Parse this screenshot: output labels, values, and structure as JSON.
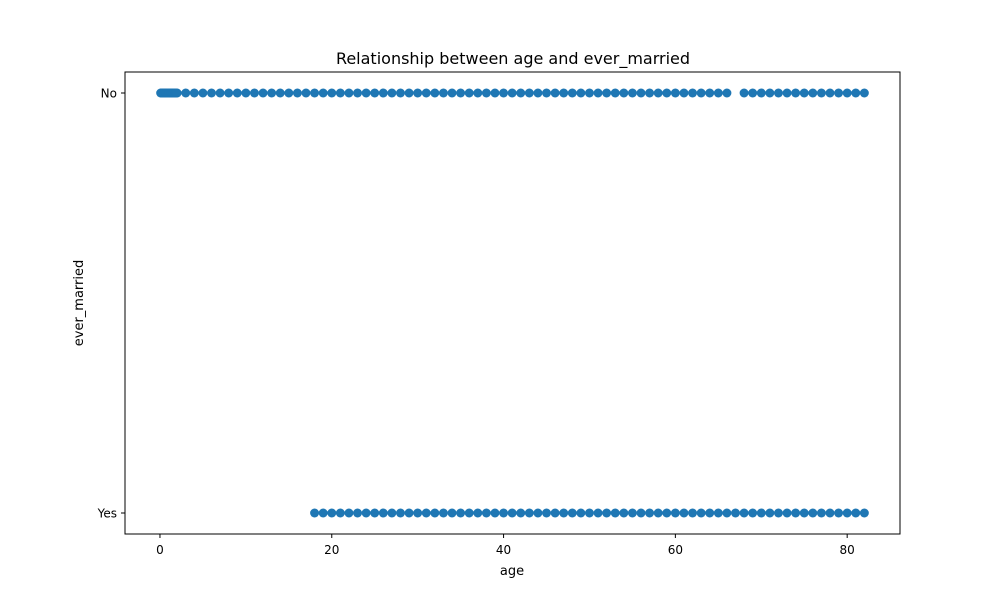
{
  "chart_data": {
    "type": "scatter",
    "title": "Relationship between age and ever_married",
    "xlabel": "age",
    "ylabel": "ever_married",
    "xlim": [
      -4.07,
      86.15
    ],
    "xticks": [
      0,
      20,
      40,
      60,
      80
    ],
    "y_categories": [
      "No",
      "Yes"
    ],
    "grid": false,
    "marker_color": "#1f77b4",
    "series": [
      {
        "category": "No",
        "x": [
          0.08,
          0.16,
          0.24,
          0.32,
          0.4,
          0.48,
          0.56,
          0.64,
          0.72,
          0.8,
          0.88,
          1.0,
          1.08,
          1.16,
          1.24,
          1.32,
          1.4,
          1.48,
          1.56,
          1.64,
          1.72,
          1.8,
          1.88,
          2,
          3,
          4,
          5,
          6,
          7,
          8,
          9,
          10,
          11,
          12,
          13,
          14,
          15,
          16,
          17,
          18,
          19,
          20,
          21,
          22,
          23,
          24,
          25,
          26,
          27,
          28,
          29,
          30,
          31,
          32,
          33,
          34,
          35,
          36,
          37,
          38,
          39,
          40,
          41,
          42,
          43,
          44,
          45,
          46,
          47,
          48,
          49,
          50,
          51,
          52,
          53,
          54,
          55,
          56,
          57,
          58,
          59,
          60,
          61,
          62,
          63,
          64,
          65,
          66,
          68,
          69,
          70,
          71,
          72,
          73,
          74,
          75,
          76,
          77,
          78,
          79,
          80,
          81,
          82
        ]
      },
      {
        "category": "Yes",
        "x": [
          18,
          19,
          20,
          21,
          22,
          23,
          24,
          25,
          26,
          27,
          28,
          29,
          30,
          31,
          32,
          33,
          34,
          35,
          36,
          37,
          38,
          39,
          40,
          41,
          42,
          43,
          44,
          45,
          46,
          47,
          48,
          49,
          50,
          51,
          52,
          53,
          54,
          55,
          56,
          57,
          58,
          59,
          60,
          61,
          62,
          63,
          64,
          65,
          66,
          67,
          68,
          69,
          70,
          71,
          72,
          73,
          74,
          75,
          76,
          77,
          78,
          79,
          80,
          81,
          82
        ]
      }
    ]
  }
}
